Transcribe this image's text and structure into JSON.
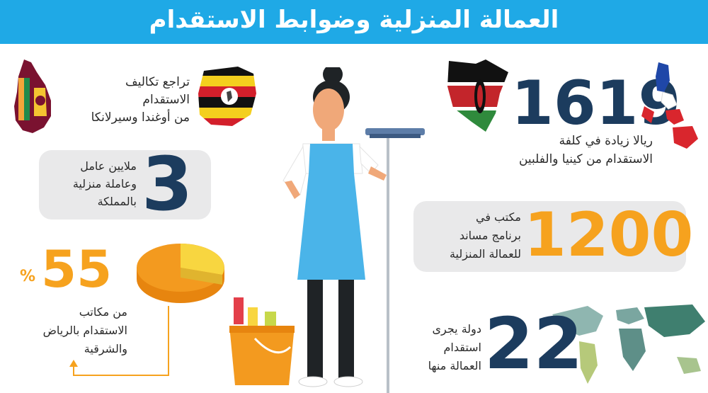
{
  "header": {
    "title": "العمالة المنزلية وضوابط الاستقدام"
  },
  "stats": {
    "kenya_philippines": {
      "number": "1619",
      "line1": "ريالا زيادة في كلفة",
      "line2": "الاستقدام من كينيا والفلبين"
    },
    "uganda_srilanka": {
      "line1": "تراجع تكاليف",
      "line2": "الاستقدام",
      "line3": "من أوغندا وسيرلانكا"
    },
    "workers": {
      "number": "3",
      "line1": "ملايين عامل",
      "line2": "وعاملة منزلية",
      "line3": "بالمملكة"
    },
    "offices": {
      "number": "1200",
      "line1": "مكتب في",
      "line2": "برنامج مساند",
      "line3": "للعمالة المنزلية"
    },
    "riyadh": {
      "number": "55",
      "percent": "%",
      "line1": "من مكاتب",
      "line2": "الاستقدام بالرياض",
      "line3": "والشرقية",
      "pie_value": 55
    },
    "countries": {
      "number": "22",
      "line1": "دولة يجرى",
      "line2": "استقدام",
      "line3": "العمالة منها"
    }
  },
  "colors": {
    "banner": "#1fa9e6",
    "navy": "#1c3c5e",
    "orange": "#f6a21e",
    "pill": "#e9e9ea"
  },
  "icons": [
    "sri-lanka-flag-map-icon",
    "uganda-flag-map-icon",
    "kenya-flag-map-icon",
    "philippines-flag-map-icon",
    "pie-chart-icon",
    "world-map-icon",
    "housekeeper-illustration",
    "cleaning-bucket-icon",
    "broom-icon"
  ]
}
